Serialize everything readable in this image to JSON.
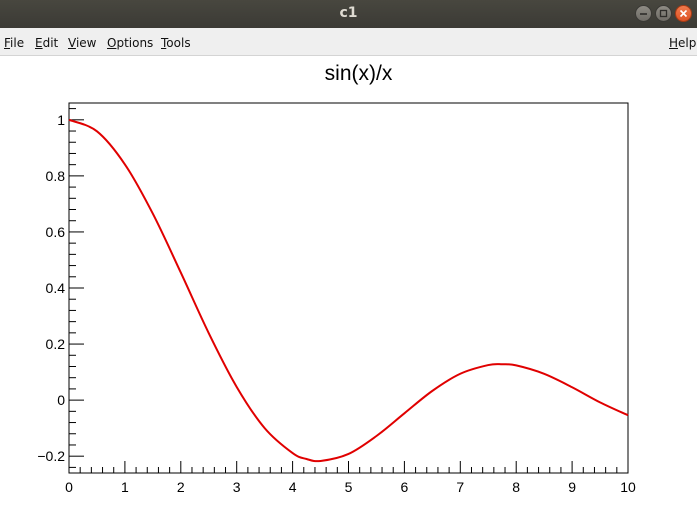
{
  "window": {
    "title": "c1",
    "buttons": [
      "minimize-icon",
      "maximize-icon",
      "close-icon"
    ]
  },
  "menu": {
    "file": "File",
    "edit": "Edit",
    "view": "View",
    "options": "Options",
    "tools": "Tools",
    "help": "Help"
  },
  "chart_data": {
    "type": "line",
    "title": "sin(x)/x",
    "xlim": [
      0,
      10
    ],
    "ylim": [
      -0.26,
      1.06
    ],
    "x_ticks": [
      0,
      1,
      2,
      3,
      4,
      5,
      6,
      7,
      8,
      9,
      10
    ],
    "x_tick_labels": [
      "0",
      "1",
      "2",
      "3",
      "4",
      "5",
      "6",
      "7",
      "8",
      "9",
      "10"
    ],
    "y_ticks": [
      -0.2,
      0,
      0.2,
      0.4,
      0.6,
      0.8,
      1
    ],
    "y_tick_labels": [
      "−0.2",
      "0",
      "0.2",
      "0.4",
      "0.6",
      "0.8",
      "1"
    ],
    "series": [
      {
        "color": "#e00000",
        "x": [
          0,
          0.5,
          1,
          1.5,
          2,
          2.5,
          3,
          3.5,
          4,
          4.25,
          4.5,
          5,
          5.5,
          6,
          6.5,
          7,
          7.5,
          7.75,
          8,
          8.5,
          9,
          9.5,
          10
        ],
        "y": [
          1,
          0.959,
          0.841,
          0.665,
          0.455,
          0.239,
          0.047,
          -0.1,
          -0.189,
          -0.21,
          -0.217,
          -0.192,
          -0.128,
          -0.047,
          0.033,
          0.094,
          0.125,
          0.128,
          0.124,
          0.094,
          0.046,
          -0.008,
          -0.054
        ]
      }
    ]
  }
}
